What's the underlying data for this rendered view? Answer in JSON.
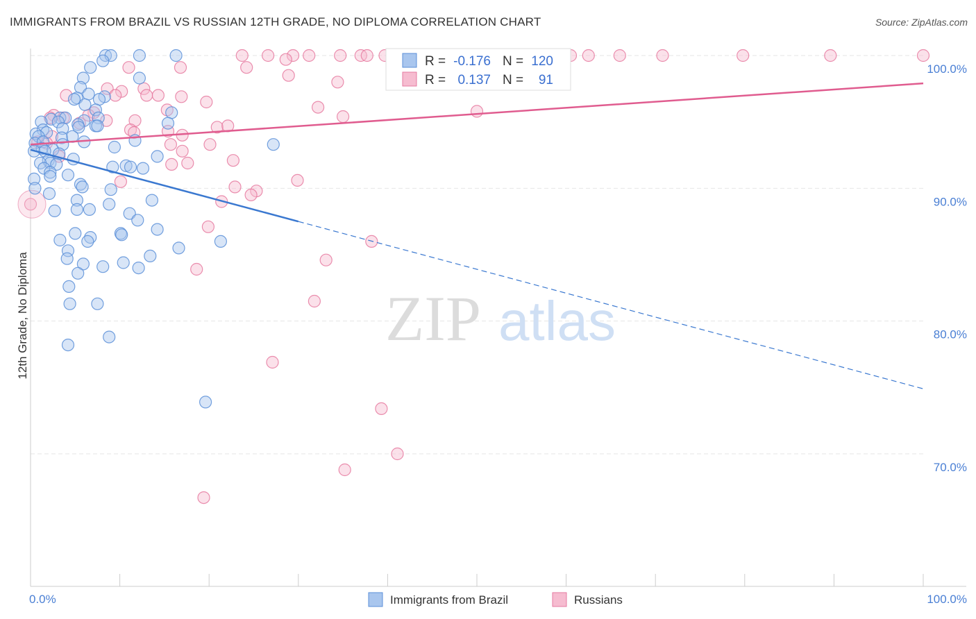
{
  "header": {
    "title": "IMMIGRANTS FROM BRAZIL VS RUSSIAN 12TH GRADE, NO DIPLOMA CORRELATION CHART",
    "source": "Source: ZipAtlas.com"
  },
  "watermark": {
    "zip": "ZIP",
    "atlas": "atlas"
  },
  "legend_box": {
    "rows": [
      {
        "r_label": "R =",
        "r_value": "-0.176",
        "n_label": "N =",
        "n_value": "120"
      },
      {
        "r_label": "R =",
        "r_value": "0.137",
        "n_label": "N =",
        "n_value": "91"
      }
    ]
  },
  "bottom_legend": [
    "Immigrants from Brazil",
    "Russians"
  ],
  "colors": {
    "blue_fill": "#a9c6ee",
    "blue_stroke": "#5b8fd8",
    "blue_line": "#3a78d0",
    "pink_fill": "#f6bcd0",
    "pink_stroke": "#e67aa0",
    "pink_line": "#e05c8f",
    "tick_text": "#4a7fd4"
  },
  "chart_data": {
    "type": "scatter",
    "xlabel": "",
    "ylabel": "12th Grade, No Diploma",
    "xlim": [
      0,
      100
    ],
    "ylim": [
      60,
      101
    ],
    "x_tick_labels": [
      "0.0%",
      "100.0%"
    ],
    "y_ticks": [
      70,
      80,
      90,
      100
    ],
    "y_tick_labels": [
      "70.0%",
      "80.0%",
      "90.0%",
      "100.0%"
    ],
    "grid": true,
    "legend_position": "top-center",
    "series": [
      {
        "name": "Immigrants from Brazil",
        "r": -0.176,
        "n": 120,
        "trend": {
          "x0": 0,
          "y0": 92.9,
          "x1": 30,
          "y1": 87.5,
          "dash_x1": 100,
          "dash_y1": 74.9
        },
        "points": [
          [
            8.4,
            100
          ],
          [
            9.0,
            100
          ],
          [
            12.2,
            100
          ],
          [
            16.3,
            100
          ],
          [
            8.1,
            99.6
          ],
          [
            6.7,
            99.1
          ],
          [
            5.9,
            98.3
          ],
          [
            12.2,
            98.3
          ],
          [
            5.6,
            97.6
          ],
          [
            6.5,
            97.1
          ],
          [
            5.2,
            96.8
          ],
          [
            8.3,
            96.9
          ],
          [
            4.9,
            96.7
          ],
          [
            7.7,
            96.7
          ],
          [
            6.1,
            96.3
          ],
          [
            7.3,
            95.9
          ],
          [
            3.3,
            95.3
          ],
          [
            2.3,
            95.2
          ],
          [
            3.9,
            95.3
          ],
          [
            6.0,
            95.1
          ],
          [
            7.6,
            95.3
          ],
          [
            15.8,
            95.7
          ],
          [
            3.1,
            95.0
          ],
          [
            1.2,
            95.0
          ],
          [
            5.3,
            94.8
          ],
          [
            7.3,
            94.7
          ],
          [
            5.4,
            94.6
          ],
          [
            7.5,
            94.7
          ],
          [
            15.4,
            94.9
          ],
          [
            3.6,
            94.5
          ],
          [
            1.4,
            94.4
          ],
          [
            0.6,
            94.1
          ],
          [
            1.8,
            94.2
          ],
          [
            3.5,
            93.8
          ],
          [
            4.7,
            93.9
          ],
          [
            0.9,
            93.9
          ],
          [
            0.5,
            93.4
          ],
          [
            1.4,
            93.5
          ],
          [
            3.6,
            93.3
          ],
          [
            6.0,
            93.5
          ],
          [
            11.7,
            93.6
          ],
          [
            9.4,
            93.1
          ],
          [
            27.2,
            93.3
          ],
          [
            1.3,
            93.0
          ],
          [
            0.4,
            92.8
          ],
          [
            2.5,
            92.9
          ],
          [
            1.6,
            92.8
          ],
          [
            3.2,
            92.6
          ],
          [
            14.2,
            92.4
          ],
          [
            4.8,
            92.2
          ],
          [
            2.0,
            92.1
          ],
          [
            2.2,
            91.9
          ],
          [
            1.1,
            91.9
          ],
          [
            2.9,
            91.8
          ],
          [
            1.5,
            91.5
          ],
          [
            9.2,
            91.6
          ],
          [
            10.7,
            91.7
          ],
          [
            12.6,
            91.5
          ],
          [
            11.2,
            91.6
          ],
          [
            2.2,
            91.2
          ],
          [
            4.2,
            91.0
          ],
          [
            0.4,
            90.7
          ],
          [
            2.2,
            90.9
          ],
          [
            5.6,
            90.3
          ],
          [
            5.8,
            90.1
          ],
          [
            9.0,
            89.9
          ],
          [
            0.5,
            90.0
          ],
          [
            2.1,
            89.6
          ],
          [
            5.2,
            89.1
          ],
          [
            13.6,
            89.1
          ],
          [
            8.8,
            88.8
          ],
          [
            5.2,
            88.4
          ],
          [
            2.7,
            88.3
          ],
          [
            6.6,
            88.4
          ],
          [
            11.1,
            88.1
          ],
          [
            12.0,
            87.6
          ],
          [
            14.2,
            86.9
          ],
          [
            5.0,
            86.6
          ],
          [
            10.1,
            86.6
          ],
          [
            6.7,
            86.3
          ],
          [
            3.3,
            86.1
          ],
          [
            10.2,
            86.5
          ],
          [
            6.4,
            86.0
          ],
          [
            21.3,
            86.0
          ],
          [
            4.2,
            85.3
          ],
          [
            16.6,
            85.5
          ],
          [
            13.4,
            84.9
          ],
          [
            4.1,
            84.7
          ],
          [
            5.9,
            84.3
          ],
          [
            10.4,
            84.4
          ],
          [
            8.1,
            84.1
          ],
          [
            12.1,
            84.0
          ],
          [
            5.3,
            83.6
          ],
          [
            4.3,
            82.6
          ],
          [
            7.5,
            81.3
          ],
          [
            4.4,
            81.3
          ],
          [
            8.8,
            78.8
          ],
          [
            4.2,
            78.2
          ],
          [
            19.6,
            73.9
          ]
        ]
      },
      {
        "name": "Russians",
        "r": 0.137,
        "n": 91,
        "trend": {
          "x0": 0,
          "y0": 93.3,
          "x1": 100,
          "y1": 97.9
        },
        "points": [
          [
            23.7,
            100
          ],
          [
            26.6,
            100
          ],
          [
            29.4,
            100
          ],
          [
            31.2,
            100
          ],
          [
            34.7,
            100
          ],
          [
            37.0,
            100
          ],
          [
            37.7,
            100
          ],
          [
            39.7,
            100
          ],
          [
            40.5,
            100
          ],
          [
            41.6,
            100
          ],
          [
            41.3,
            99.7
          ],
          [
            45.3,
            100
          ],
          [
            49.3,
            100
          ],
          [
            57.7,
            100
          ],
          [
            52.1,
            100
          ],
          [
            60.5,
            100
          ],
          [
            62.5,
            100
          ],
          [
            66.0,
            100
          ],
          [
            70.8,
            100
          ],
          [
            79.8,
            100
          ],
          [
            89.6,
            100
          ],
          [
            100.0,
            100
          ],
          [
            28.6,
            99.7
          ],
          [
            24.2,
            99.1
          ],
          [
            11.0,
            99.1
          ],
          [
            16.8,
            99.1
          ],
          [
            47.9,
            98.8
          ],
          [
            28.9,
            98.5
          ],
          [
            34.4,
            98.0
          ],
          [
            8.6,
            97.5
          ],
          [
            10.2,
            97.3
          ],
          [
            12.7,
            97.5
          ],
          [
            13.0,
            97.0
          ],
          [
            4.0,
            97.0
          ],
          [
            9.5,
            97.0
          ],
          [
            14.3,
            97.0
          ],
          [
            16.9,
            96.9
          ],
          [
            19.7,
            96.5
          ],
          [
            32.2,
            96.1
          ],
          [
            7.1,
            95.7
          ],
          [
            2.6,
            95.5
          ],
          [
            6.5,
            95.5
          ],
          [
            15.3,
            95.9
          ],
          [
            50.0,
            95.8
          ],
          [
            35.0,
            95.4
          ],
          [
            3.7,
            95.3
          ],
          [
            2.2,
            95.3
          ],
          [
            11.7,
            95.1
          ],
          [
            5.5,
            94.9
          ],
          [
            8.5,
            95.1
          ],
          [
            20.9,
            94.6
          ],
          [
            22.1,
            94.7
          ],
          [
            11.2,
            94.4
          ],
          [
            15.4,
            94.3
          ],
          [
            11.6,
            94.2
          ],
          [
            17.0,
            94.0
          ],
          [
            2.4,
            93.9
          ],
          [
            0.8,
            93.5
          ],
          [
            1.8,
            93.4
          ],
          [
            15.7,
            93.3
          ],
          [
            20.1,
            93.3
          ],
          [
            17.0,
            92.8
          ],
          [
            3.2,
            92.4
          ],
          [
            22.7,
            92.1
          ],
          [
            15.8,
            91.8
          ],
          [
            17.6,
            91.9
          ],
          [
            29.9,
            90.6
          ],
          [
            10.1,
            90.5
          ],
          [
            22.9,
            90.1
          ],
          [
            25.3,
            89.8
          ],
          [
            24.7,
            89.5
          ],
          [
            21.4,
            89.0
          ],
          [
            0.0,
            88.8
          ],
          [
            19.9,
            87.1
          ],
          [
            38.2,
            86.0
          ],
          [
            33.1,
            84.6
          ],
          [
            18.6,
            83.9
          ],
          [
            31.8,
            81.5
          ],
          [
            27.1,
            76.9
          ],
          [
            39.3,
            73.4
          ],
          [
            41.1,
            70.0
          ],
          [
            35.2,
            68.8
          ],
          [
            19.4,
            66.7
          ]
        ]
      }
    ]
  }
}
